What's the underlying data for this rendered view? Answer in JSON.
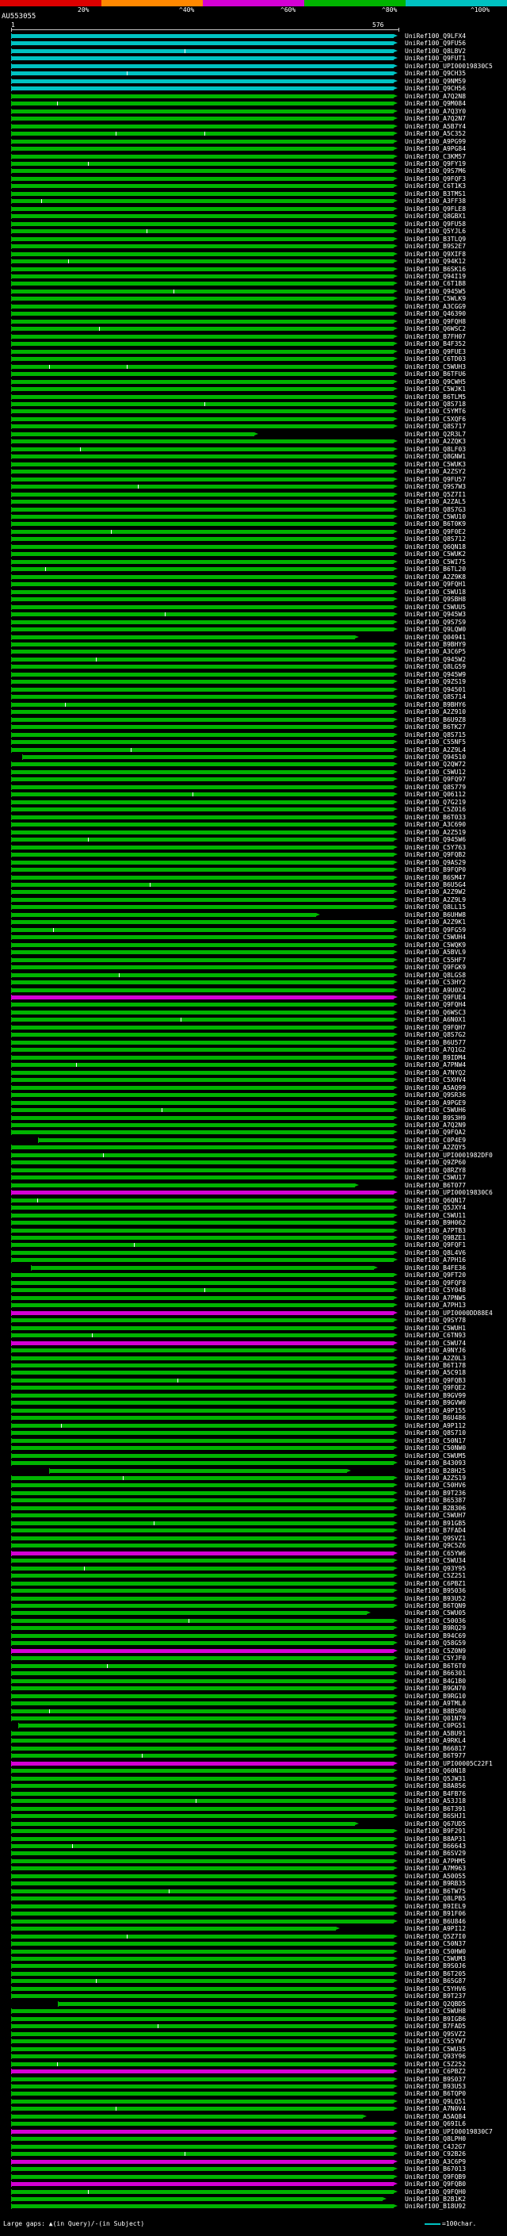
{
  "chart_data": {
    "type": "bar",
    "orientation": "horizontal",
    "description": "BLAST graphical overview: query coverage bars for database hits, colored by percent identity",
    "query": {
      "accession": "AU553055",
      "start": "1",
      "end": "576",
      "length": 576
    },
    "xlim": [
      1,
      576
    ],
    "identity_key": {
      "segments": [
        {
          "label": "20%",
          "color": "#dd0000"
        },
        {
          "label": "^40%",
          "color": "#ff8800"
        },
        {
          "label": "^60%",
          "color": "#d400d4"
        },
        {
          "label": "^80%",
          "color": "#00b400"
        },
        {
          "label": "^100%",
          "color": "#00c2c2"
        }
      ]
    },
    "bar_colors": {
      "g": "#00b400",
      "c": "#00c2c2",
      "m": "#d400d4"
    },
    "hit_prefix": "UniRef100_",
    "rows": [
      {
        "l": "Q9LFX4",
        "c": "c"
      },
      {
        "l": "Q9FU56",
        "c": "c"
      },
      {
        "l": "Q8LBV2",
        "c": "c",
        "k": [
          259
        ]
      },
      {
        "l": "Q9FUT1",
        "c": "c"
      },
      {
        "l": "UPI00019830C5",
        "c": "c"
      },
      {
        "l": "Q9CH35",
        "c": "c",
        "k": [
          173
        ]
      },
      {
        "l": "Q9NM59",
        "c": "c"
      },
      {
        "l": "Q9CH56",
        "c": "c"
      },
      {
        "l": "A7Q2N8"
      },
      {
        "l": "Q9M084",
        "k": [
          69
        ]
      },
      {
        "l": "A7Q3Y0"
      },
      {
        "l": "A7Q2N7"
      },
      {
        "l": "A5B7Y4"
      },
      {
        "l": "A5C352",
        "k": [
          156,
          288
        ]
      },
      {
        "l": "A9PG99"
      },
      {
        "l": "A9PG84"
      },
      {
        "l": "C3KM57"
      },
      {
        "l": "Q9FY19",
        "k": [
          115
        ]
      },
      {
        "l": "Q9S7M6"
      },
      {
        "l": "Q9FQF3"
      },
      {
        "l": "C6T1K3"
      },
      {
        "l": "B3TMS1"
      },
      {
        "l": "A3FF38",
        "k": [
          46
        ]
      },
      {
        "l": "Q9FLE8"
      },
      {
        "l": "Q8GBX1"
      },
      {
        "l": "Q9FU58"
      },
      {
        "l": "Q5YJL6",
        "k": [
          202
        ]
      },
      {
        "l": "B3TLQ9"
      },
      {
        "l": "B9S2E7"
      },
      {
        "l": "Q9XIF8"
      },
      {
        "l": "Q94K12",
        "k": [
          86
        ]
      },
      {
        "l": "B6SK16"
      },
      {
        "l": "Q94I19"
      },
      {
        "l": "C6T1B8"
      },
      {
        "l": "Q945W5",
        "k": [
          242
        ]
      },
      {
        "l": "C5WLK9"
      },
      {
        "l": "A3CGG9"
      },
      {
        "l": "Q46390"
      },
      {
        "l": "Q9FQH8"
      },
      {
        "l": "Q6WSC2",
        "k": [
          132
        ]
      },
      {
        "l": "B7FH07"
      },
      {
        "l": "B4F352"
      },
      {
        "l": "Q9FUE3"
      },
      {
        "l": "C6TD03"
      },
      {
        "l": "C5WUH3",
        "k": [
          58,
          173
        ]
      },
      {
        "l": "B6TFU6"
      },
      {
        "l": "Q9CWH5"
      },
      {
        "l": "C5WJK1"
      },
      {
        "l": "B6TLM5"
      },
      {
        "l": "Q8S718",
        "k": [
          288
        ]
      },
      {
        "l": "C5YMT6"
      },
      {
        "l": "C5XQF6"
      },
      {
        "l": "Q8S717"
      },
      {
        "l": "Q2R3L7",
        "e": 369
      },
      {
        "l": "A2ZQK3"
      },
      {
        "l": "Q8LF03",
        "k": [
          104
        ]
      },
      {
        "l": "Q8GNW1"
      },
      {
        "l": "C5WUK3"
      },
      {
        "l": "A2ZSY2"
      },
      {
        "l": "Q9FU57"
      },
      {
        "l": "Q9S7W3",
        "k": [
          190
        ]
      },
      {
        "l": "Q5Z7I1"
      },
      {
        "l": "A2ZAL5"
      },
      {
        "l": "Q8S7G3"
      },
      {
        "l": "C5WU10"
      },
      {
        "l": "B6T0K9"
      },
      {
        "l": "Q9F0E2",
        "k": [
          150
        ]
      },
      {
        "l": "Q8S712"
      },
      {
        "l": "Q6QN18"
      },
      {
        "l": "C5WUK2"
      },
      {
        "l": "C5WI75"
      },
      {
        "l": "B6TL20",
        "k": [
          52
        ]
      },
      {
        "l": "A2Z9K8"
      },
      {
        "l": "Q9FQH1"
      },
      {
        "l": "C5WU18"
      },
      {
        "l": "Q9SBH8"
      },
      {
        "l": "C5WUU5"
      },
      {
        "l": "Q945W3",
        "k": [
          230
        ]
      },
      {
        "l": "Q9S7S9"
      },
      {
        "l": "Q9LQW0"
      },
      {
        "l": "Q04941",
        "e": 518
      },
      {
        "l": "B9BHY9"
      },
      {
        "l": "A3C6P5"
      },
      {
        "l": "Q945W2",
        "k": [
          127
        ]
      },
      {
        "l": "Q8LG59"
      },
      {
        "l": "Q945W9"
      },
      {
        "l": "Q9ZS19"
      },
      {
        "l": "Q94501"
      },
      {
        "l": "Q8S714"
      },
      {
        "l": "B9BHY6",
        "k": [
          81
        ]
      },
      {
        "l": "A2Z910"
      },
      {
        "l": "B6U9Z8"
      },
      {
        "l": "B6TK27"
      },
      {
        "l": "Q8S715"
      },
      {
        "l": "C55NF5"
      },
      {
        "l": "A2Z9L4",
        "k": [
          179
        ]
      },
      {
        "l": "Q94510",
        "s": 18
      },
      {
        "l": "Q2QW72"
      },
      {
        "l": "C5WU12"
      },
      {
        "l": "Q9FQ97"
      },
      {
        "l": "Q8S779"
      },
      {
        "l": "Q06112",
        "k": [
          271
        ]
      },
      {
        "l": "Q7G219"
      },
      {
        "l": "C5Z016"
      },
      {
        "l": "B6T033"
      },
      {
        "l": "A3C690"
      },
      {
        "l": "A2Z519"
      },
      {
        "l": "Q945W6",
        "k": [
          115
        ]
      },
      {
        "l": "C5Y763"
      },
      {
        "l": "Q9FQB2"
      },
      {
        "l": "Q9AS29"
      },
      {
        "l": "B9FQP0"
      },
      {
        "l": "B6SM47"
      },
      {
        "l": "B6U5G4",
        "k": [
          207
        ]
      },
      {
        "l": "A2Z9W2"
      },
      {
        "l": "A2Z9L9"
      },
      {
        "l": "Q8LL15"
      },
      {
        "l": "B6UHW8",
        "e": 461
      },
      {
        "l": "A2Z9K1"
      },
      {
        "l": "Q9FG59",
        "k": [
          63
        ]
      },
      {
        "l": "C5WUH4"
      },
      {
        "l": "C5WQK9"
      },
      {
        "l": "A5BVL9"
      },
      {
        "l": "C55HF7"
      },
      {
        "l": "Q9FGK9"
      },
      {
        "l": "Q8LGS8",
        "k": [
          161
        ]
      },
      {
        "l": "C53HY2"
      },
      {
        "l": "A9U0X2"
      },
      {
        "l": "Q9FUE4",
        "c": "m"
      },
      {
        "l": "Q9FQH4"
      },
      {
        "l": "Q6WSC3"
      },
      {
        "l": "A6N0X1",
        "k": [
          253
        ]
      },
      {
        "l": "Q9FQH7"
      },
      {
        "l": "Q8S7G2"
      },
      {
        "l": "B6U577"
      },
      {
        "l": "A7Q1G2"
      },
      {
        "l": "B9IDM4"
      },
      {
        "l": "A7PNW4",
        "k": [
          98
        ]
      },
      {
        "l": "A7NYQ2"
      },
      {
        "l": "C5XHV4"
      },
      {
        "l": "A5AQ99"
      },
      {
        "l": "Q9SR36"
      },
      {
        "l": "A9PGE9"
      },
      {
        "l": "C5WUH6",
        "k": [
          225
        ]
      },
      {
        "l": "B9S3H9"
      },
      {
        "l": "A7Q2N9"
      },
      {
        "l": "Q9FQA2"
      },
      {
        "l": "C0P4E9",
        "s": 41
      },
      {
        "l": "A2ZQY5"
      },
      {
        "l": "UPI0001982DF0",
        "k": [
          138
        ]
      },
      {
        "l": "Q9ZP60"
      },
      {
        "l": "Q8RZY8"
      },
      {
        "l": "C5WU17"
      },
      {
        "l": "B6T077",
        "e": 518
      },
      {
        "l": "UPI00019830C6",
        "c": "m"
      },
      {
        "l": "Q6QN17",
        "k": [
          40
        ]
      },
      {
        "l": "Q5JXY4"
      },
      {
        "l": "C5WU11"
      },
      {
        "l": "B9H062"
      },
      {
        "l": "A7PTB3"
      },
      {
        "l": "Q9BZE1"
      },
      {
        "l": "Q9FQF1",
        "k": [
          184
        ]
      },
      {
        "l": "Q8L4V6"
      },
      {
        "l": "A7PH16"
      },
      {
        "l": "B4FE36",
        "s": 30,
        "e": 547
      },
      {
        "l": "Q9FT20"
      },
      {
        "l": "Q9FQF0"
      },
      {
        "l": "C5Y048",
        "k": [
          288
        ]
      },
      {
        "l": "A7PNW5"
      },
      {
        "l": "A7PH13"
      },
      {
        "l": "UPI0000DD88E4",
        "c": "m"
      },
      {
        "l": "Q9SY78"
      },
      {
        "l": "C5WUH1"
      },
      {
        "l": "C6TN93",
        "k": [
          121
        ]
      },
      {
        "l": "C5WU74",
        "c": "m"
      },
      {
        "l": "A9NYJ6"
      },
      {
        "l": "A2Z0L3"
      },
      {
        "l": "B6T178"
      },
      {
        "l": "A5C918"
      },
      {
        "l": "Q9FQB3",
        "k": [
          248
        ]
      },
      {
        "l": "Q9FQE2"
      },
      {
        "l": "B9GV99"
      },
      {
        "l": "B9GVW0"
      },
      {
        "l": "A9P155"
      },
      {
        "l": "B6U486"
      },
      {
        "l": "A9P112",
        "k": [
          75
        ]
      },
      {
        "l": "Q8S710"
      },
      {
        "l": "C50N17"
      },
      {
        "l": "C50NW0"
      },
      {
        "l": "C5WUM5"
      },
      {
        "l": "B43093"
      },
      {
        "l": "B28H25",
        "s": 58,
        "e": 507
      },
      {
        "l": "A2ZS19",
        "k": [
          167
        ]
      },
      {
        "l": "C50HV6"
      },
      {
        "l": "B9T236"
      },
      {
        "l": "B65387"
      },
      {
        "l": "B2B306"
      },
      {
        "l": "C5WUH7"
      },
      {
        "l": "B91GB5",
        "k": [
          213
        ]
      },
      {
        "l": "B7FAD4"
      },
      {
        "l": "Q9SVZ1"
      },
      {
        "l": "Q9C5Z6"
      },
      {
        "l": "C65YW6",
        "c": "m"
      },
      {
        "l": "C5WU34"
      },
      {
        "l": "Q93Y95",
        "k": [
          109
        ]
      },
      {
        "l": "C5Z251"
      },
      {
        "l": "C6PBZ1"
      },
      {
        "l": "B95036"
      },
      {
        "l": "B93U52"
      },
      {
        "l": "B6TQN9"
      },
      {
        "l": "C5WU05",
        "e": 536
      },
      {
        "l": "C50036",
        "k": [
          265
        ]
      },
      {
        "l": "B9RQ29"
      },
      {
        "l": "B94C69"
      },
      {
        "l": "Q58G59"
      },
      {
        "l": "C5Z0N9",
        "c": "m"
      },
      {
        "l": "C5YJF0"
      },
      {
        "l": "B6T6T0",
        "k": [
          144
        ]
      },
      {
        "l": "B66301"
      },
      {
        "l": "B4G1B0"
      },
      {
        "l": "B9GN70"
      },
      {
        "l": "B9RG10"
      },
      {
        "l": "A9TML0"
      },
      {
        "l": "B8B5R0",
        "k": [
          58
        ]
      },
      {
        "l": "Q01N79"
      },
      {
        "l": "C0PG51",
        "s": 12
      },
      {
        "l": "A5BU91"
      },
      {
        "l": "A9RKL4"
      },
      {
        "l": "B66817"
      },
      {
        "l": "B6T977",
        "k": [
          196
        ]
      },
      {
        "l": "UPI00005C22F1",
        "c": "m"
      },
      {
        "l": "Q60N18"
      },
      {
        "l": "Q5JW31"
      },
      {
        "l": "B8A856"
      },
      {
        "l": "B4FB76"
      },
      {
        "l": "A53J18",
        "k": [
          276
        ]
      },
      {
        "l": "B6T391"
      },
      {
        "l": "B6SHJ1"
      },
      {
        "l": "Q67UD5",
        "e": 518
      },
      {
        "l": "B9F291"
      },
      {
        "l": "B8AP31"
      },
      {
        "l": "B66643",
        "k": [
          92
        ]
      },
      {
        "l": "B6SV29"
      },
      {
        "l": "A7PHM5"
      },
      {
        "l": "A7M963"
      },
      {
        "l": "A50055"
      },
      {
        "l": "B9RB35"
      },
      {
        "l": "B6TW75",
        "k": [
          236
        ]
      },
      {
        "l": "Q8LPB5"
      },
      {
        "l": "B9IEL9"
      },
      {
        "l": "B91F06"
      },
      {
        "l": "B6U846"
      },
      {
        "l": "A9PI12",
        "e": 490
      },
      {
        "l": "Q5Z7I0",
        "k": [
          173
        ]
      },
      {
        "l": "C50N37"
      },
      {
        "l": "C50HW0"
      },
      {
        "l": "C5WUM3"
      },
      {
        "l": "B9S0J6"
      },
      {
        "l": "B6T205"
      },
      {
        "l": "B65G87",
        "k": [
          127
        ]
      },
      {
        "l": "C5YHV6"
      },
      {
        "l": "B9T237"
      },
      {
        "l": "Q2QBD5",
        "s": 70
      },
      {
        "l": "C5WUH8"
      },
      {
        "l": "B9IGB6"
      },
      {
        "l": "B7FAD5",
        "k": [
          219
        ]
      },
      {
        "l": "Q9SVZ2"
      },
      {
        "l": "C55YW7"
      },
      {
        "l": "C5WU35"
      },
      {
        "l": "Q93Y96"
      },
      {
        "l": "C5Z252",
        "k": [
          69
        ]
      },
      {
        "l": "C6PBZ2",
        "c": "m"
      },
      {
        "l": "B9S037"
      },
      {
        "l": "B93U53"
      },
      {
        "l": "B6TQP0"
      },
      {
        "l": "Q9LQ51"
      },
      {
        "l": "A7N0V4",
        "k": [
          156
        ]
      },
      {
        "l": "A5AQ84",
        "e": 530
      },
      {
        "l": "Q69IL6"
      },
      {
        "l": "UPI00019830C7",
        "c": "m"
      },
      {
        "l": "Q8LPH0"
      },
      {
        "l": "C4J2G7"
      },
      {
        "l": "C92B26",
        "k": [
          259
        ]
      },
      {
        "l": "A3C6P9",
        "c": "m"
      },
      {
        "l": "B67013"
      },
      {
        "l": "Q9FQB9"
      },
      {
        "l": "Q9FQB0",
        "c": "m"
      },
      {
        "l": "Q9FQH0",
        "k": [
          115
        ]
      },
      {
        "l": "B2B1K2",
        "e": 559
      },
      {
        "l": "B18U92"
      }
    ]
  },
  "legend": {
    "gaps": "Large gaps: ▲(in Query)/-(in Subject)",
    "unit": "=100char."
  }
}
